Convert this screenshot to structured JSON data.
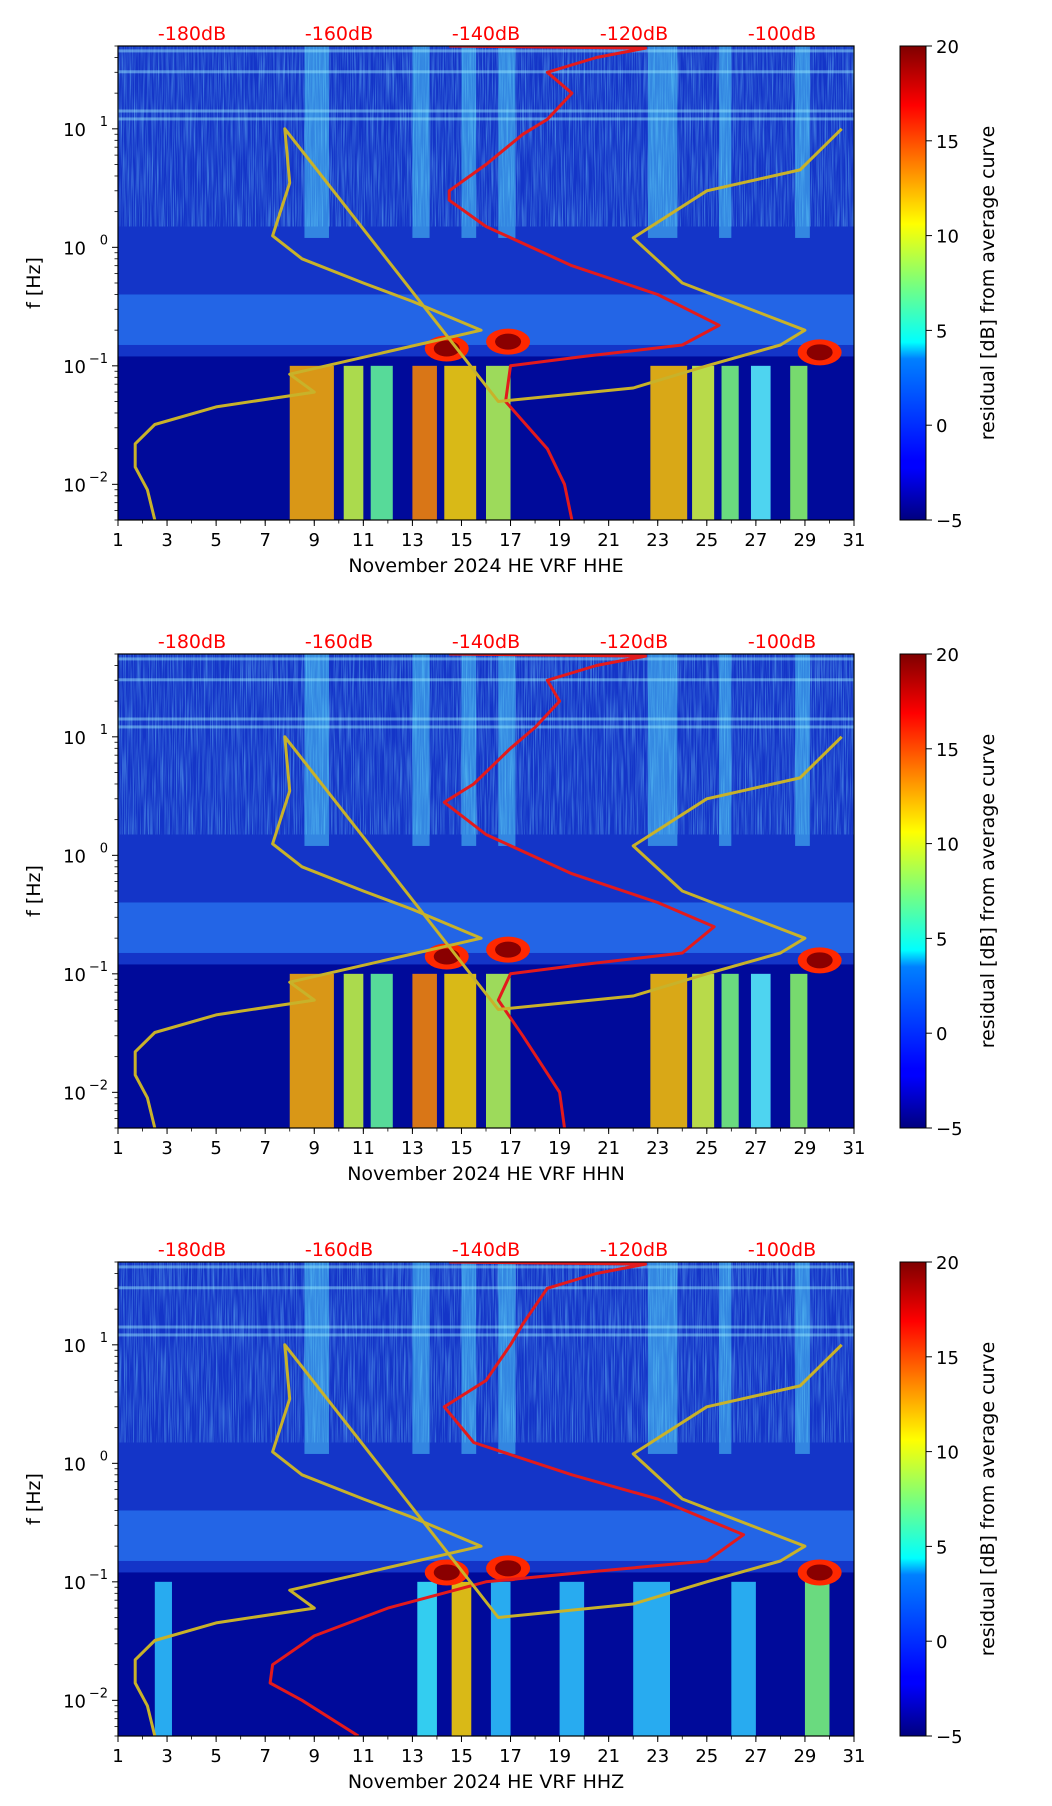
{
  "colors": {
    "curve": "#e31a1c",
    "model": "#c8b22a",
    "background_low": "#0b1fb0",
    "db_label": "#ff0000"
  },
  "chart_data": [
    {
      "type": "heatmap",
      "title": "",
      "xlabel": "November 2024 HE VRF  HHE",
      "ylabel": "f [Hz]",
      "x_ticks": [
        "1",
        "3",
        "5",
        "7",
        "9",
        "11",
        "13",
        "15",
        "17",
        "19",
        "21",
        "23",
        "25",
        "27",
        "29",
        "31"
      ],
      "xlim": [
        1,
        31
      ],
      "y_ticks": [
        0.01,
        0.1,
        1,
        10
      ],
      "ylim": [
        0.005,
        50
      ],
      "y_scale": "log",
      "top_ticks": [
        "-180dB",
        "-160dB",
        "-140dB",
        "-120dB",
        "-100dB"
      ],
      "colorbar": {
        "label": "residual [dB] from average curve",
        "ticks": [
          "20",
          "15",
          "10",
          "5",
          "0",
          "−5"
        ],
        "range": [
          -5,
          20
        ],
        "cmap": "jet"
      },
      "series": [
        {
          "name": "average PSD curve",
          "color": "red",
          "points": [
            [
              14.5,
              50
            ],
            [
              22.5,
              48
            ],
            [
              20.5,
              40
            ],
            [
              18.5,
              30
            ],
            [
              19.5,
              20
            ],
            [
              18.5,
              12
            ],
            [
              17.5,
              9
            ],
            [
              16,
              5
            ],
            [
              14.5,
              3
            ],
            [
              14.5,
              2.5
            ],
            [
              16,
              1.5
            ],
            [
              19.5,
              0.7
            ],
            [
              23,
              0.4
            ],
            [
              25.5,
              0.22
            ],
            [
              24,
              0.15
            ],
            [
              20,
              0.12
            ],
            [
              17,
              0.1
            ],
            [
              16.8,
              0.05
            ],
            [
              18.5,
              0.02
            ],
            [
              19.2,
              0.01
            ],
            [
              19.5,
              0.005
            ]
          ]
        },
        {
          "name": "noise model",
          "color": "olive",
          "points": [
            [
              2.5,
              0.005
            ],
            [
              2.2,
              0.009
            ],
            [
              1.7,
              0.014
            ],
            [
              1.7,
              0.022
            ],
            [
              2.5,
              0.032
            ],
            [
              5,
              0.045
            ],
            [
              9,
              0.06
            ],
            [
              8,
              0.085
            ],
            [
              15.8,
              0.2
            ],
            [
              13,
              0.35
            ],
            [
              11,
              0.5
            ],
            [
              8.5,
              0.8
            ],
            [
              7.3,
              1.25
            ],
            [
              8,
              3.5
            ],
            [
              7.8,
              10
            ],
            [
              16.5,
              0.05
            ],
            [
              22,
              0.065
            ],
            [
              25,
              0.1
            ],
            [
              28,
              0.15
            ],
            [
              29,
              0.2
            ],
            [
              24,
              0.5
            ],
            [
              22,
              1.2
            ],
            [
              25,
              3
            ],
            [
              28.8,
              4.5
            ],
            [
              30.5,
              10
            ]
          ]
        }
      ]
    },
    {
      "type": "heatmap",
      "title": "",
      "xlabel": "November 2024 HE VRF  HHN",
      "ylabel": "f [Hz]",
      "x_ticks": [
        "1",
        "3",
        "5",
        "7",
        "9",
        "11",
        "13",
        "15",
        "17",
        "19",
        "21",
        "23",
        "25",
        "27",
        "29",
        "31"
      ],
      "xlim": [
        1,
        31
      ],
      "y_ticks": [
        0.01,
        0.1,
        1,
        10
      ],
      "ylim": [
        0.005,
        50
      ],
      "y_scale": "log",
      "top_ticks": [
        "-180dB",
        "-160dB",
        "-140dB",
        "-120dB",
        "-100dB"
      ],
      "colorbar": {
        "label": "residual [dB] from average curve",
        "ticks": [
          "20",
          "15",
          "10",
          "5",
          "0",
          "−5"
        ],
        "range": [
          -5,
          20
        ],
        "cmap": "jet"
      },
      "series": [
        {
          "name": "average PSD curve",
          "color": "red",
          "points": [
            [
              14.5,
              50
            ],
            [
              22.5,
              48
            ],
            [
              20.5,
              40
            ],
            [
              18.5,
              30
            ],
            [
              19,
              20
            ],
            [
              18,
              12
            ],
            [
              17,
              8
            ],
            [
              15.5,
              4
            ],
            [
              14.3,
              2.8
            ],
            [
              16,
              1.5
            ],
            [
              19.5,
              0.7
            ],
            [
              23,
              0.4
            ],
            [
              25.3,
              0.25
            ],
            [
              24,
              0.15
            ],
            [
              20,
              0.12
            ],
            [
              17,
              0.1
            ],
            [
              16.5,
              0.06
            ],
            [
              17.5,
              0.03
            ],
            [
              19,
              0.01
            ],
            [
              19.2,
              0.005
            ]
          ]
        },
        {
          "name": "noise model",
          "color": "olive",
          "points": [
            [
              2.5,
              0.005
            ],
            [
              2.2,
              0.009
            ],
            [
              1.7,
              0.014
            ],
            [
              1.7,
              0.022
            ],
            [
              2.5,
              0.032
            ],
            [
              5,
              0.045
            ],
            [
              9,
              0.06
            ],
            [
              8,
              0.085
            ],
            [
              15.8,
              0.2
            ],
            [
              13,
              0.35
            ],
            [
              11,
              0.5
            ],
            [
              8.5,
              0.8
            ],
            [
              7.3,
              1.25
            ],
            [
              8,
              3.5
            ],
            [
              7.8,
              10
            ],
            [
              16.5,
              0.05
            ],
            [
              22,
              0.065
            ],
            [
              25,
              0.1
            ],
            [
              28,
              0.15
            ],
            [
              29,
              0.2
            ],
            [
              24,
              0.5
            ],
            [
              22,
              1.2
            ],
            [
              25,
              3
            ],
            [
              28.8,
              4.5
            ],
            [
              30.5,
              10
            ]
          ]
        }
      ]
    },
    {
      "type": "heatmap",
      "title": "",
      "xlabel": "November 2024 HE VRF  HHZ",
      "ylabel": "f [Hz]",
      "x_ticks": [
        "1",
        "3",
        "5",
        "7",
        "9",
        "11",
        "13",
        "15",
        "17",
        "19",
        "21",
        "23",
        "25",
        "27",
        "29",
        "31"
      ],
      "xlim": [
        1,
        31
      ],
      "y_ticks": [
        0.01,
        0.1,
        1,
        10
      ],
      "ylim": [
        0.005,
        50
      ],
      "y_scale": "log",
      "top_ticks": [
        "-180dB",
        "-160dB",
        "-140dB",
        "-120dB",
        "-100dB"
      ],
      "colorbar": {
        "label": "residual [dB] from average curve",
        "ticks": [
          "20",
          "15",
          "10",
          "5",
          "0",
          "−5"
        ],
        "range": [
          -5,
          20
        ],
        "cmap": "jet"
      },
      "series": [
        {
          "name": "average PSD curve",
          "color": "red",
          "points": [
            [
              14.5,
              50
            ],
            [
              22.5,
              48
            ],
            [
              20.5,
              40
            ],
            [
              18.5,
              30
            ],
            [
              17.5,
              15
            ],
            [
              17,
              10
            ],
            [
              16,
              5
            ],
            [
              14.3,
              3
            ],
            [
              15.5,
              1.5
            ],
            [
              19.5,
              0.8
            ],
            [
              23,
              0.5
            ],
            [
              26.5,
              0.25
            ],
            [
              25,
              0.15
            ],
            [
              20,
              0.12
            ],
            [
              16,
              0.1
            ],
            [
              12,
              0.06
            ],
            [
              9,
              0.035
            ],
            [
              7.3,
              0.02
            ],
            [
              7.2,
              0.014
            ],
            [
              8.5,
              0.01
            ],
            [
              10.8,
              0.005
            ]
          ]
        },
        {
          "name": "noise model",
          "color": "olive",
          "points": [
            [
              2.5,
              0.005
            ],
            [
              2.2,
              0.009
            ],
            [
              1.7,
              0.014
            ],
            [
              1.7,
              0.022
            ],
            [
              2.5,
              0.032
            ],
            [
              5,
              0.045
            ],
            [
              9,
              0.06
            ],
            [
              8,
              0.085
            ],
            [
              15.8,
              0.2
            ],
            [
              13,
              0.35
            ],
            [
              11,
              0.5
            ],
            [
              8.5,
              0.8
            ],
            [
              7.3,
              1.25
            ],
            [
              8,
              3.5
            ],
            [
              7.8,
              10
            ],
            [
              16.5,
              0.05
            ],
            [
              22,
              0.065
            ],
            [
              25,
              0.1
            ],
            [
              28,
              0.15
            ],
            [
              29,
              0.2
            ],
            [
              24,
              0.5
            ],
            [
              22,
              1.2
            ],
            [
              25,
              3
            ],
            [
              28.8,
              4.5
            ],
            [
              30.5,
              10
            ]
          ]
        }
      ]
    }
  ]
}
